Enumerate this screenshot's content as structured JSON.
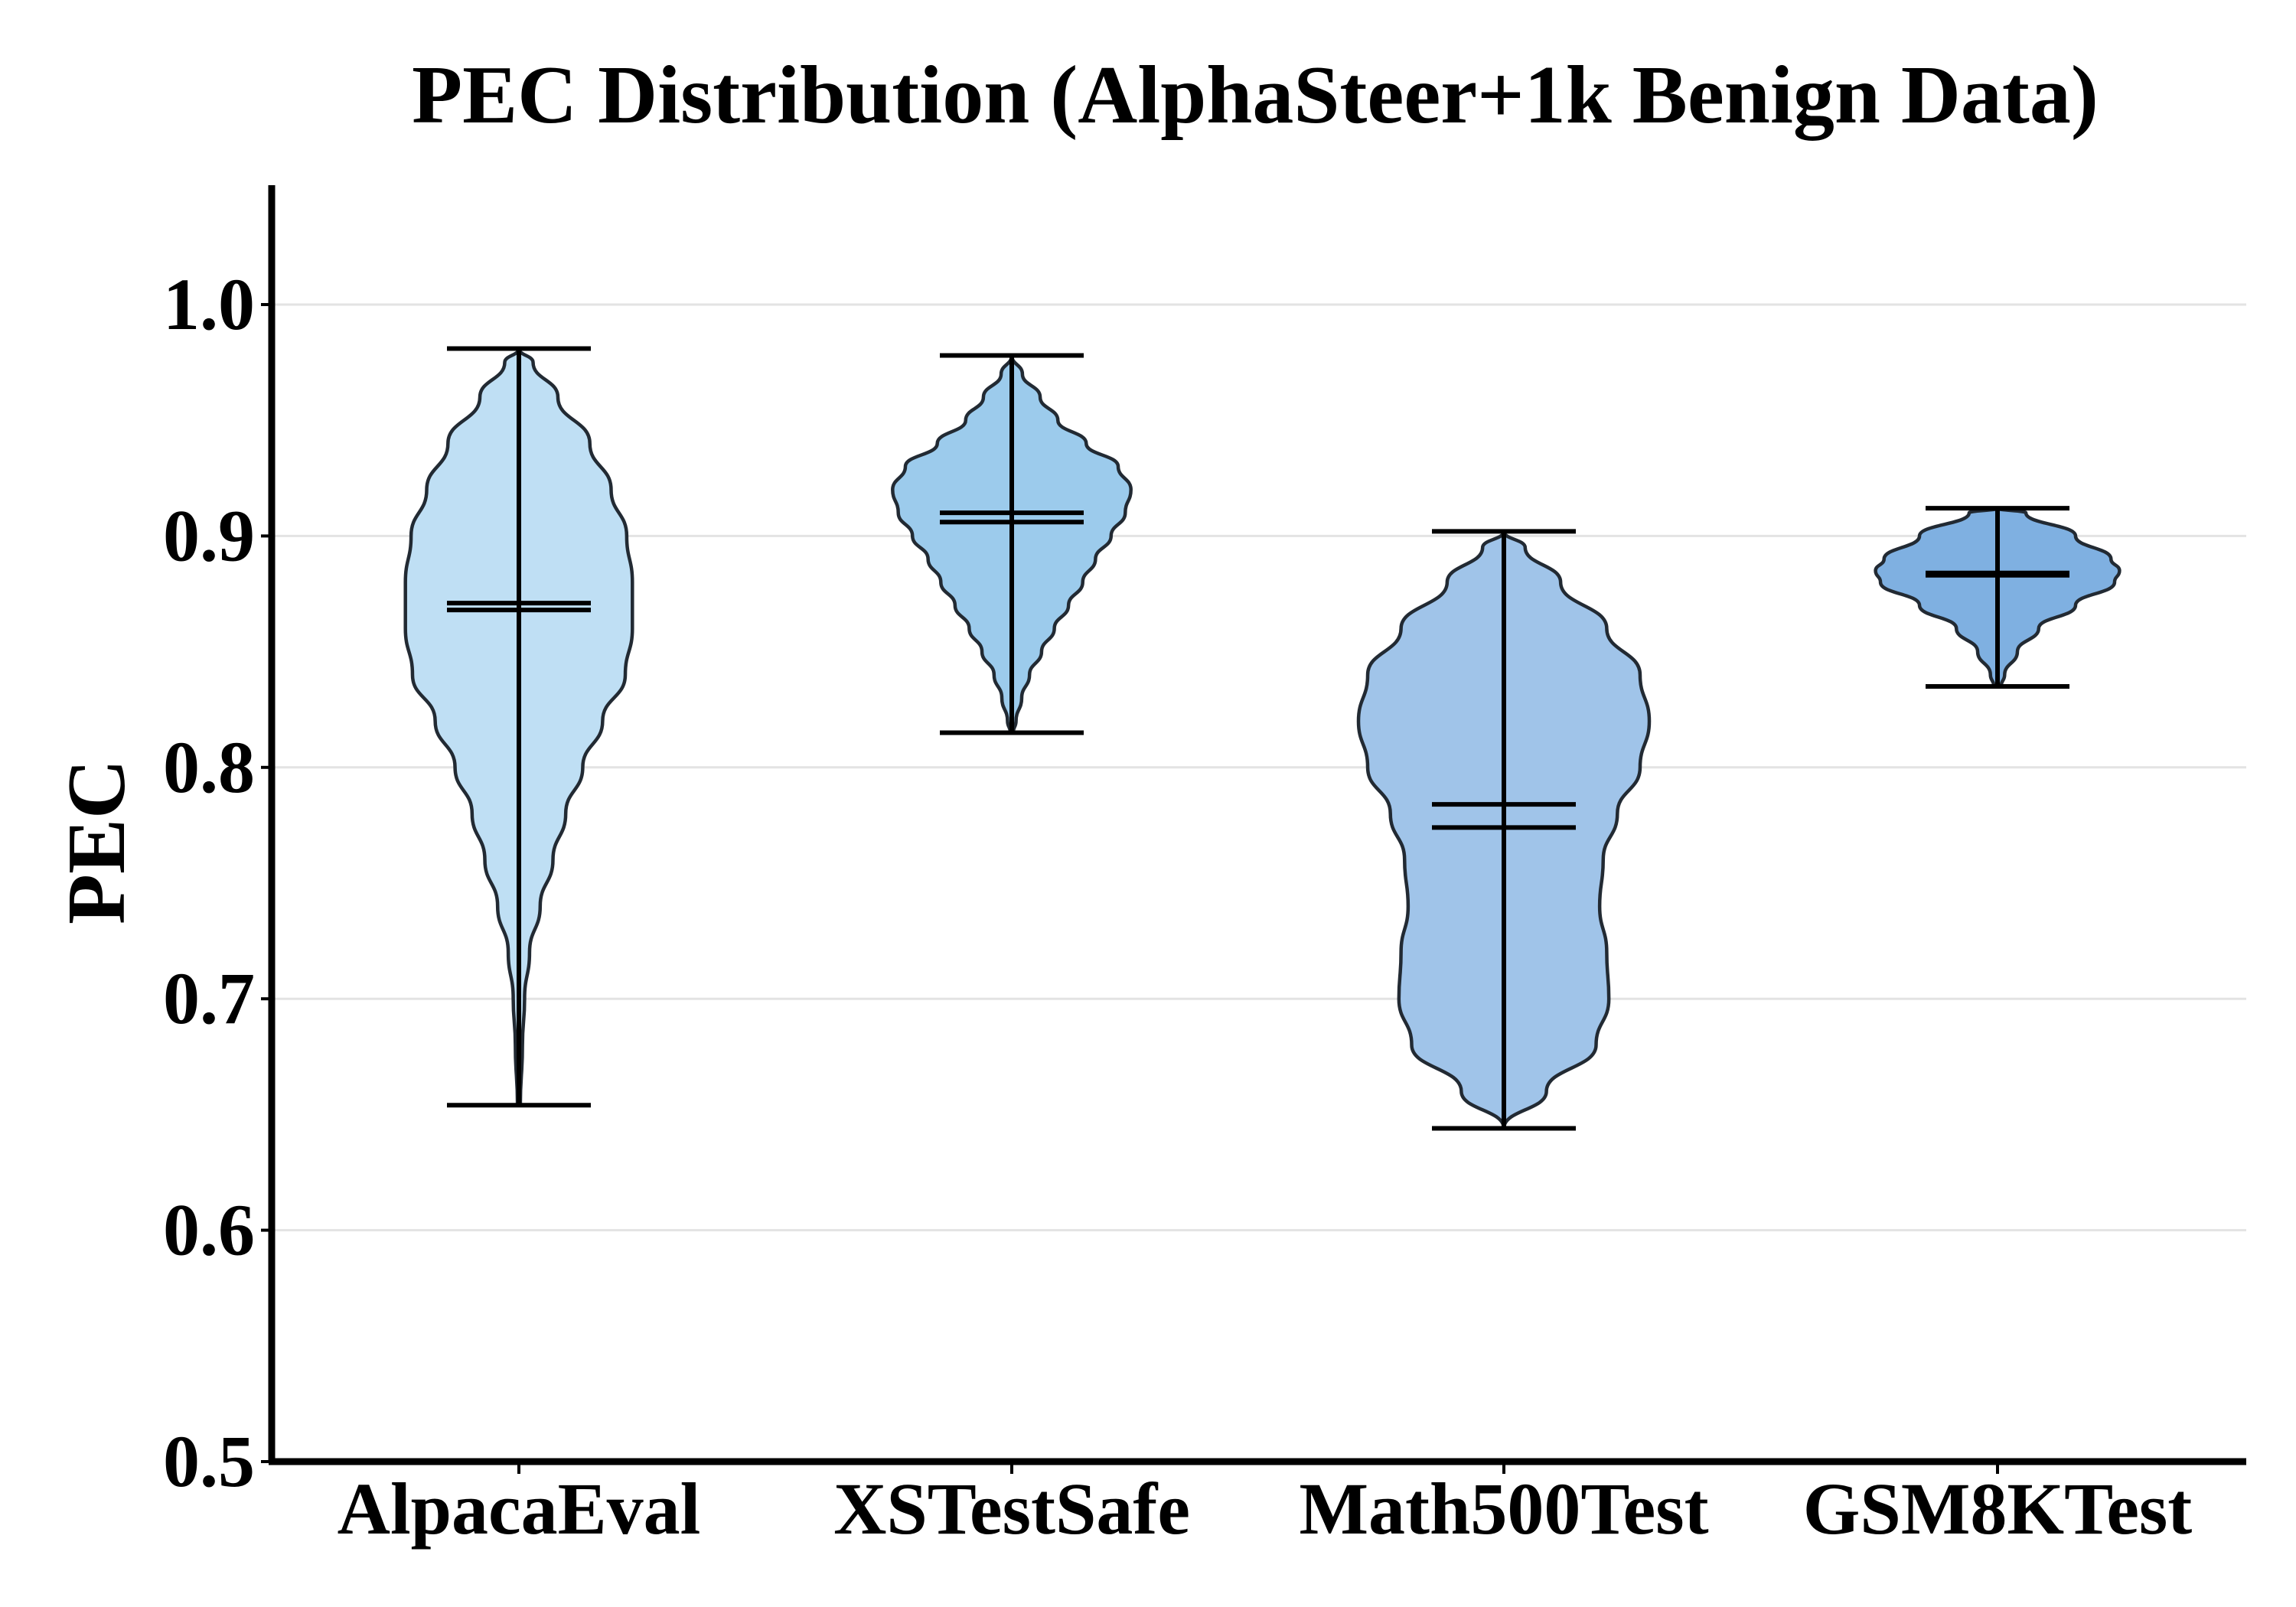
{
  "chart_data": {
    "type": "violin",
    "title": "PEC Distribution (AlphaSteer+1k Benign Data)",
    "xlabel": "",
    "ylabel": "PEC",
    "ylim": [
      0.5,
      1.05
    ],
    "yticks": [
      0.5,
      0.6,
      0.7,
      0.8,
      0.9,
      1.0
    ],
    "ytick_labels": [
      "0.5",
      "0.6",
      "0.7",
      "0.8",
      "0.9",
      "1.0"
    ],
    "grid": "y",
    "categories": [
      "AlpacaEval",
      "XSTestSafe",
      "Math500Test",
      "GSM8KTest"
    ],
    "series": [
      {
        "category": "AlpacaEval",
        "color": "#bfdff4",
        "min": 0.654,
        "max": 0.981,
        "mean": 0.871,
        "median": 0.868,
        "density": [
          [
            0.654,
            0.002
          ],
          [
            0.68,
            0.005
          ],
          [
            0.7,
            0.008
          ],
          [
            0.72,
            0.015
          ],
          [
            0.74,
            0.03
          ],
          [
            0.76,
            0.048
          ],
          [
            0.78,
            0.066
          ],
          [
            0.8,
            0.09
          ],
          [
            0.82,
            0.118
          ],
          [
            0.84,
            0.15
          ],
          [
            0.86,
            0.16
          ],
          [
            0.88,
            0.16
          ],
          [
            0.9,
            0.152
          ],
          [
            0.92,
            0.13
          ],
          [
            0.94,
            0.1
          ],
          [
            0.96,
            0.055
          ],
          [
            0.975,
            0.02
          ],
          [
            0.981,
            0.0
          ]
        ]
      },
      {
        "category": "XSTestSafe",
        "color": "#9ccbec",
        "min": 0.815,
        "max": 0.978,
        "mean": 0.91,
        "median": 0.906,
        "density": [
          [
            0.815,
            0.002
          ],
          [
            0.82,
            0.006
          ],
          [
            0.83,
            0.014
          ],
          [
            0.84,
            0.025
          ],
          [
            0.85,
            0.042
          ],
          [
            0.86,
            0.06
          ],
          [
            0.87,
            0.08
          ],
          [
            0.88,
            0.1
          ],
          [
            0.89,
            0.118
          ],
          [
            0.9,
            0.14
          ],
          [
            0.91,
            0.16
          ],
          [
            0.92,
            0.168
          ],
          [
            0.93,
            0.15
          ],
          [
            0.94,
            0.105
          ],
          [
            0.95,
            0.065
          ],
          [
            0.96,
            0.04
          ],
          [
            0.97,
            0.015
          ],
          [
            0.978,
            0.0
          ]
        ]
      },
      {
        "category": "Math500Test",
        "color": "#a0c4e9",
        "min": 0.644,
        "max": 0.902,
        "mean": 0.784,
        "median": 0.774,
        "density": [
          [
            0.644,
            0.0
          ],
          [
            0.66,
            0.06
          ],
          [
            0.68,
            0.13
          ],
          [
            0.7,
            0.148
          ],
          [
            0.72,
            0.145
          ],
          [
            0.74,
            0.135
          ],
          [
            0.76,
            0.14
          ],
          [
            0.78,
            0.16
          ],
          [
            0.8,
            0.192
          ],
          [
            0.82,
            0.205
          ],
          [
            0.84,
            0.192
          ],
          [
            0.86,
            0.145
          ],
          [
            0.88,
            0.08
          ],
          [
            0.895,
            0.03
          ],
          [
            0.902,
            0.0
          ]
        ]
      },
      {
        "category": "GSM8KTest",
        "color": "#7fb0e1",
        "min": 0.835,
        "max": 0.912,
        "mean": 0.884,
        "median": 0.883,
        "density": [
          [
            0.835,
            0.005
          ],
          [
            0.84,
            0.01
          ],
          [
            0.85,
            0.028
          ],
          [
            0.86,
            0.058
          ],
          [
            0.87,
            0.11
          ],
          [
            0.88,
            0.165
          ],
          [
            0.885,
            0.172
          ],
          [
            0.89,
            0.16
          ],
          [
            0.9,
            0.11
          ],
          [
            0.91,
            0.04
          ],
          [
            0.912,
            0.0
          ]
        ]
      }
    ]
  }
}
